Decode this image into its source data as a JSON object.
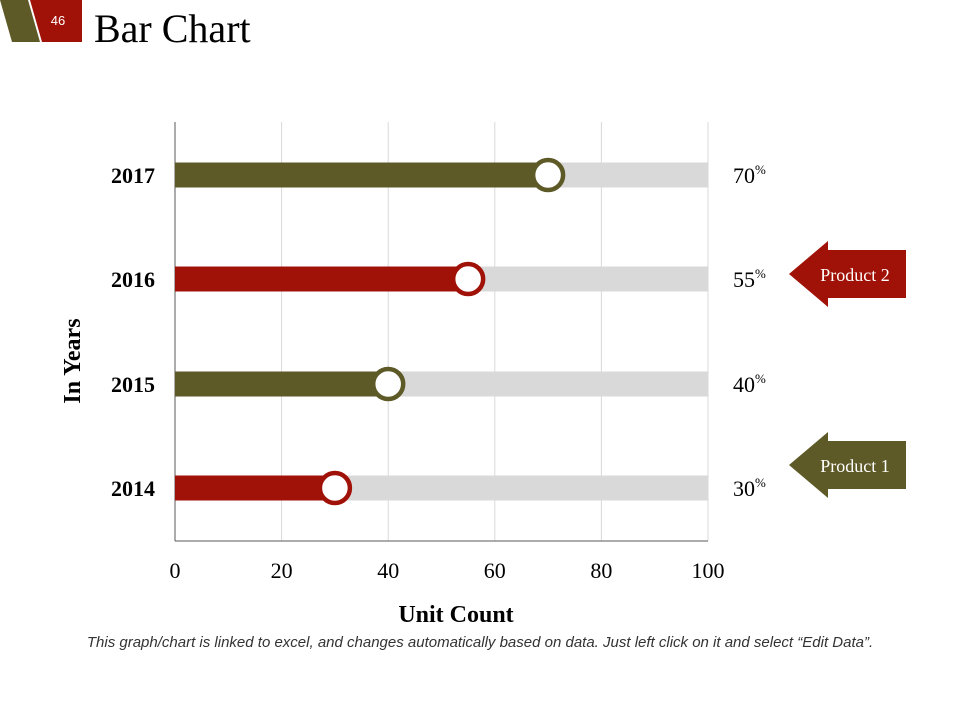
{
  "slide": {
    "number": "46",
    "title": "Bar Chart",
    "footnote": "This graph/chart is linked to excel, and changes automatically based on data. Just left click on it and select “Edit Data”."
  },
  "colors": {
    "olive": "#5e5a28",
    "red": "#a01208",
    "track": "#d9d9d9",
    "grid": "#d9d9d9",
    "axis": "#595959"
  },
  "chart_data": {
    "type": "bar",
    "orientation": "horizontal",
    "xlabel": "Unit Count",
    "ylabel": "In Years",
    "xlim": [
      0,
      100
    ],
    "xticks": [
      0,
      20,
      40,
      60,
      80,
      100
    ],
    "grid": true,
    "categories": [
      "2017",
      "2016",
      "2015",
      "2014"
    ],
    "values": [
      70,
      55,
      40,
      30
    ],
    "value_labels": [
      "70",
      "55",
      "40",
      "30"
    ],
    "value_unit": "%",
    "bar_series": [
      "Product 1",
      "Product 2",
      "Product 1",
      "Product 2"
    ],
    "legend": [
      {
        "name": "Product 2",
        "color": "#a01208"
      },
      {
        "name": "Product 1",
        "color": "#5e5a28"
      }
    ],
    "legend_placement": "right"
  }
}
